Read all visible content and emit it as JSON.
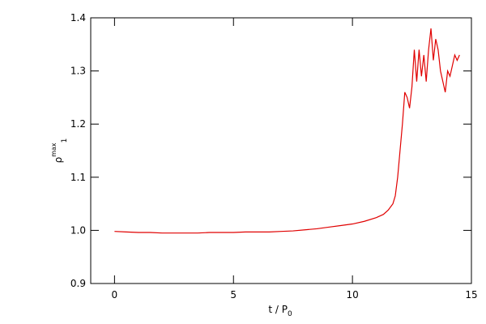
{
  "chart_data": {
    "type": "line",
    "xlabel": {
      "base": "t / P",
      "sub": "0"
    },
    "ylabel": {
      "base": "ρ",
      "sup": "max",
      "sub": "1"
    },
    "xlim": [
      -1,
      15
    ],
    "ylim": [
      0.9,
      1.4
    ],
    "xticks": [
      0,
      5,
      10,
      15
    ],
    "yticks": [
      0.9,
      {
        "value": 1,
        "label": "1.0"
      },
      1.1,
      1.2,
      1.3,
      1.4
    ],
    "series": [
      {
        "color": "#e00000",
        "x": [
          0,
          0.5,
          1,
          1.5,
          2,
          2.5,
          3,
          3.5,
          4,
          4.5,
          5,
          5.5,
          6,
          6.5,
          7,
          7.5,
          8,
          8.5,
          9,
          9.5,
          10,
          10.5,
          11,
          11.3,
          11.5,
          11.7,
          11.8,
          11.9,
          12,
          12.1,
          12.2,
          12.3,
          12.4,
          12.5,
          12.6,
          12.7,
          12.8,
          12.9,
          13,
          13.1,
          13.2,
          13.3,
          13.4,
          13.5,
          13.6,
          13.7,
          13.8,
          13.9,
          14,
          14.1,
          14.2,
          14.3,
          14.4,
          14.5
        ],
        "values": [
          0.998,
          0.997,
          0.996,
          0.996,
          0.995,
          0.995,
          0.995,
          0.995,
          0.996,
          0.996,
          0.996,
          0.997,
          0.997,
          0.997,
          0.998,
          0.999,
          1.001,
          1.003,
          1.006,
          1.009,
          1.012,
          1.017,
          1.024,
          1.03,
          1.038,
          1.05,
          1.065,
          1.1,
          1.15,
          1.2,
          1.26,
          1.25,
          1.23,
          1.27,
          1.34,
          1.28,
          1.34,
          1.29,
          1.33,
          1.28,
          1.34,
          1.38,
          1.32,
          1.36,
          1.34,
          1.3,
          1.28,
          1.26,
          1.3,
          1.29,
          1.31,
          1.33,
          1.32,
          1.33
        ]
      }
    ]
  }
}
